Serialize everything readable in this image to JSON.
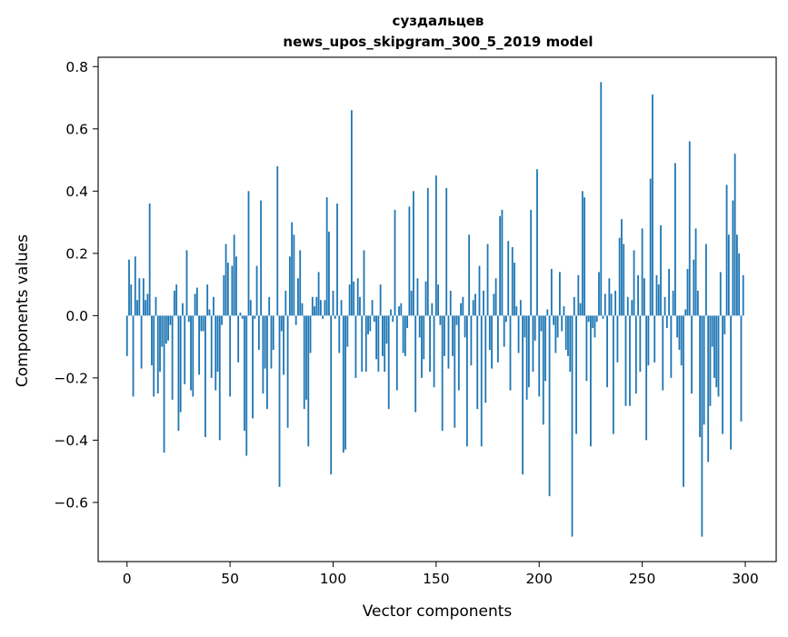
{
  "chart_data": {
    "type": "bar",
    "title": "суздальцев",
    "subtitle": "news_upos_skipgram_300_5_2019 model",
    "xlabel": "Vector components",
    "ylabel": "Components values",
    "xlim": [
      -14,
      315
    ],
    "ylim": [
      -0.79,
      0.83
    ],
    "xticks": [
      0,
      50,
      100,
      150,
      200,
      250,
      300
    ],
    "yticks": [
      -0.6,
      -0.4,
      -0.2,
      0.0,
      0.2,
      0.4,
      0.6,
      0.8
    ],
    "xtick_labels": [
      "0",
      "50",
      "100",
      "150",
      "200",
      "250",
      "300"
    ],
    "ytick_labels": [
      "−0.6",
      "−0.4",
      "−0.2",
      "0.0",
      "0.2",
      "0.4",
      "0.6",
      "0.8"
    ],
    "bar_color": "#1f77b4",
    "grid": false,
    "legend": false,
    "x": "0..299 (component index)",
    "values": [
      -0.13,
      0.18,
      0.1,
      -0.26,
      0.19,
      0.05,
      0.12,
      -0.17,
      0.12,
      0.05,
      0.07,
      0.36,
      -0.16,
      -0.26,
      0.06,
      -0.25,
      -0.18,
      -0.1,
      -0.44,
      -0.09,
      -0.08,
      -0.03,
      -0.27,
      0.08,
      0.1,
      -0.37,
      -0.31,
      0.04,
      -0.22,
      0.21,
      -0.02,
      -0.24,
      -0.26,
      0.07,
      0.09,
      -0.19,
      -0.05,
      -0.05,
      -0.39,
      0.1,
      0.02,
      -0.2,
      0.06,
      -0.24,
      -0.18,
      -0.4,
      -0.03,
      0.13,
      0.23,
      0.17,
      -0.26,
      0.16,
      0.26,
      0.19,
      -0.15,
      0.01,
      -0.01,
      -0.37,
      -0.45,
      0.4,
      0.05,
      -0.33,
      -0.01,
      0.16,
      -0.11,
      0.37,
      -0.25,
      -0.17,
      -0.3,
      0.06,
      -0.17,
      -0.11,
      0.0,
      0.48,
      -0.55,
      -0.05,
      -0.19,
      0.08,
      -0.36,
      0.19,
      0.3,
      0.26,
      -0.03,
      0.12,
      0.21,
      0.04,
      -0.3,
      -0.27,
      -0.42,
      -0.12,
      0.06,
      0.03,
      0.06,
      0.14,
      0.05,
      -0.01,
      0.05,
      0.38,
      0.27,
      -0.51,
      0.08,
      -0.01,
      0.36,
      -0.12,
      0.05,
      -0.44,
      -0.43,
      -0.1,
      0.1,
      0.66,
      0.11,
      -0.2,
      0.12,
      0.06,
      -0.18,
      0.21,
      -0.18,
      -0.06,
      -0.05,
      0.05,
      -0.02,
      -0.14,
      -0.18,
      0.1,
      -0.13,
      -0.18,
      -0.09,
      -0.3,
      0.02,
      -0.02,
      0.34,
      -0.24,
      0.03,
      0.04,
      -0.12,
      -0.13,
      -0.04,
      0.35,
      0.08,
      0.4,
      -0.31,
      0.12,
      -0.07,
      -0.2,
      -0.14,
      0.11,
      0.41,
      -0.18,
      0.04,
      -0.23,
      0.45,
      0.1,
      -0.03,
      -0.37,
      -0.13,
      0.41,
      -0.17,
      0.08,
      -0.13,
      -0.36,
      -0.03,
      -0.24,
      0.04,
      0.06,
      -0.07,
      -0.42,
      0.26,
      -0.16,
      0.05,
      0.07,
      -0.3,
      0.16,
      -0.42,
      0.08,
      -0.28,
      0.23,
      -0.11,
      -0.17,
      0.07,
      0.12,
      -0.15,
      0.32,
      0.34,
      -0.1,
      -0.02,
      0.24,
      -0.24,
      0.22,
      0.17,
      0.03,
      -0.12,
      0.05,
      -0.51,
      -0.07,
      -0.27,
      -0.23,
      0.34,
      -0.18,
      -0.08,
      0.47,
      -0.26,
      -0.05,
      -0.35,
      -0.21,
      0.02,
      -0.58,
      0.15,
      -0.03,
      -0.12,
      -0.07,
      0.14,
      -0.05,
      0.03,
      -0.11,
      -0.13,
      -0.18,
      -0.71,
      0.06,
      -0.38,
      0.13,
      0.04,
      0.4,
      0.38,
      -0.21,
      -0.02,
      -0.42,
      -0.04,
      -0.07,
      -0.02,
      0.14,
      0.75,
      -0.01,
      0.07,
      -0.23,
      0.12,
      0.07,
      -0.38,
      0.08,
      -0.15,
      0.25,
      0.31,
      0.23,
      -0.29,
      0.06,
      -0.29,
      0.05,
      0.21,
      -0.25,
      0.13,
      -0.18,
      0.28,
      0.12,
      -0.4,
      -0.16,
      0.44,
      0.71,
      -0.15,
      0.13,
      0.1,
      0.29,
      -0.24,
      0.06,
      -0.04,
      0.15,
      -0.2,
      0.08,
      0.49,
      -0.07,
      -0.11,
      -0.16,
      -0.55,
      0.02,
      0.15,
      0.56,
      -0.25,
      0.18,
      0.28,
      0.08,
      -0.39,
      -0.71,
      -0.35,
      0.23,
      -0.47,
      -0.29,
      -0.1,
      -0.2,
      -0.23,
      -0.26,
      0.14,
      -0.38,
      -0.06,
      0.42,
      0.26,
      -0.43,
      0.37,
      0.52,
      0.26,
      0.2,
      -0.34,
      0.13
    ]
  }
}
